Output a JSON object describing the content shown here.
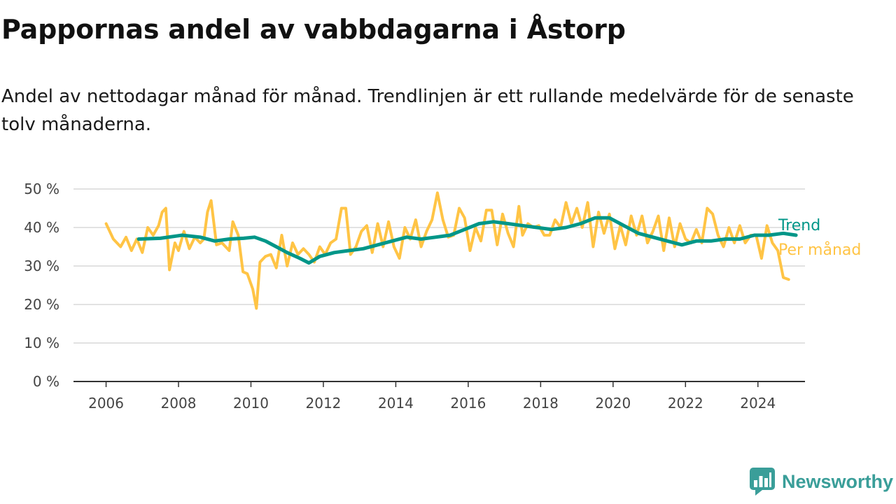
{
  "title": "Pappornas andel av vabbdagarna i Åstorp",
  "subtitle": "Andel av nettodagar månad för månad. Trendlinjen är ett rullande medelvärde för de senaste tolv månaderna.",
  "brand": {
    "name": "Newsworthy",
    "icon": "newsworthy-logo-icon"
  },
  "colors": {
    "trend": "#009688",
    "monthly": "#ffc445",
    "grid": "#d9d9d9",
    "axis": "#333333"
  },
  "chart_data": {
    "type": "line",
    "x_unit": "year (decimal)",
    "xlim": [
      2005.1,
      2025.3
    ],
    "ylim": [
      0,
      50
    ],
    "x_ticks": [
      2006,
      2008,
      2010,
      2012,
      2014,
      2016,
      2018,
      2020,
      2022,
      2024
    ],
    "x_tick_labels": [
      "2006",
      "2008",
      "2010",
      "2012",
      "2014",
      "2016",
      "2018",
      "2020",
      "2022",
      "2024"
    ],
    "y_ticks": [
      0,
      10,
      20,
      30,
      40,
      50
    ],
    "y_tick_labels": [
      "0 %",
      "10 %",
      "20 %",
      "30 %",
      "40 %",
      "50 %"
    ],
    "grid": true,
    "legend": "direct labels at right end of lines",
    "series": [
      {
        "name": "Per månad",
        "color": "#ffc445",
        "points": [
          [
            2006.0,
            41.0
          ],
          [
            2006.2,
            37.0
          ],
          [
            2006.4,
            35.0
          ],
          [
            2006.55,
            37.5
          ],
          [
            2006.7,
            34.0
          ],
          [
            2006.85,
            37.0
          ],
          [
            2007.0,
            33.5
          ],
          [
            2007.15,
            40.0
          ],
          [
            2007.3,
            38.0
          ],
          [
            2007.45,
            40.5
          ],
          [
            2007.55,
            44.0
          ],
          [
            2007.65,
            45.0
          ],
          [
            2007.75,
            29.0
          ],
          [
            2007.9,
            36.0
          ],
          [
            2008.0,
            34.0
          ],
          [
            2008.15,
            39.0
          ],
          [
            2008.3,
            34.5
          ],
          [
            2008.45,
            37.5
          ],
          [
            2008.6,
            36.0
          ],
          [
            2008.7,
            37.0
          ],
          [
            2008.8,
            44.0
          ],
          [
            2008.9,
            47.0
          ],
          [
            2009.05,
            35.5
          ],
          [
            2009.2,
            36.0
          ],
          [
            2009.4,
            34.0
          ],
          [
            2009.5,
            41.5
          ],
          [
            2009.65,
            38.0
          ],
          [
            2009.78,
            28.5
          ],
          [
            2009.9,
            28.0
          ],
          [
            2010.05,
            24.0
          ],
          [
            2010.15,
            19.0
          ],
          [
            2010.25,
            31.0
          ],
          [
            2010.4,
            32.5
          ],
          [
            2010.55,
            33.0
          ],
          [
            2010.7,
            29.5
          ],
          [
            2010.85,
            38.0
          ],
          [
            2011.0,
            30.0
          ],
          [
            2011.15,
            36.0
          ],
          [
            2011.3,
            33.0
          ],
          [
            2011.45,
            34.5
          ],
          [
            2011.6,
            33.0
          ],
          [
            2011.75,
            31.0
          ],
          [
            2011.9,
            35.0
          ],
          [
            2012.05,
            33.0
          ],
          [
            2012.2,
            36.0
          ],
          [
            2012.35,
            37.0
          ],
          [
            2012.5,
            45.0
          ],
          [
            2012.62,
            45.0
          ],
          [
            2012.75,
            33.0
          ],
          [
            2012.9,
            35.0
          ],
          [
            2013.05,
            39.0
          ],
          [
            2013.2,
            40.5
          ],
          [
            2013.35,
            33.5
          ],
          [
            2013.5,
            41.0
          ],
          [
            2013.65,
            35.0
          ],
          [
            2013.8,
            41.5
          ],
          [
            2013.95,
            35.0
          ],
          [
            2014.1,
            32.0
          ],
          [
            2014.25,
            40.0
          ],
          [
            2014.4,
            37.0
          ],
          [
            2014.55,
            42.0
          ],
          [
            2014.7,
            35.0
          ],
          [
            2014.85,
            39.0
          ],
          [
            2015.0,
            42.0
          ],
          [
            2015.15,
            49.0
          ],
          [
            2015.3,
            42.0
          ],
          [
            2015.45,
            37.5
          ],
          [
            2015.6,
            38.0
          ],
          [
            2015.75,
            45.0
          ],
          [
            2015.9,
            42.5
          ],
          [
            2016.05,
            34.0
          ],
          [
            2016.2,
            40.0
          ],
          [
            2016.35,
            36.5
          ],
          [
            2016.5,
            44.5
          ],
          [
            2016.65,
            44.5
          ],
          [
            2016.8,
            35.5
          ],
          [
            2016.95,
            43.5
          ],
          [
            2017.1,
            38.5
          ],
          [
            2017.25,
            35.0
          ],
          [
            2017.4,
            45.5
          ],
          [
            2017.5,
            38.0
          ],
          [
            2017.65,
            41.0
          ],
          [
            2017.8,
            40.0
          ],
          [
            2017.95,
            40.5
          ],
          [
            2018.1,
            38.0
          ],
          [
            2018.25,
            38.0
          ],
          [
            2018.4,
            42.0
          ],
          [
            2018.55,
            40.0
          ],
          [
            2018.7,
            46.5
          ],
          [
            2018.85,
            41.0
          ],
          [
            2019.0,
            45.0
          ],
          [
            2019.15,
            40.0
          ],
          [
            2019.3,
            46.5
          ],
          [
            2019.45,
            35.0
          ],
          [
            2019.6,
            44.0
          ],
          [
            2019.75,
            38.5
          ],
          [
            2019.9,
            43.5
          ],
          [
            2020.05,
            34.5
          ],
          [
            2020.2,
            40.5
          ],
          [
            2020.35,
            35.5
          ],
          [
            2020.5,
            43.0
          ],
          [
            2020.65,
            38.0
          ],
          [
            2020.8,
            43.0
          ],
          [
            2020.95,
            36.0
          ],
          [
            2021.1,
            39.0
          ],
          [
            2021.25,
            43.0
          ],
          [
            2021.4,
            34.0
          ],
          [
            2021.55,
            42.5
          ],
          [
            2021.7,
            35.0
          ],
          [
            2021.85,
            41.0
          ],
          [
            2022.0,
            37.0
          ],
          [
            2022.15,
            36.0
          ],
          [
            2022.3,
            39.5
          ],
          [
            2022.45,
            36.0
          ],
          [
            2022.6,
            45.0
          ],
          [
            2022.75,
            43.5
          ],
          [
            2022.9,
            38.0
          ],
          [
            2023.05,
            35.0
          ],
          [
            2023.2,
            40.0
          ],
          [
            2023.35,
            36.0
          ],
          [
            2023.5,
            40.5
          ],
          [
            2023.65,
            36.0
          ],
          [
            2023.8,
            38.0
          ],
          [
            2023.95,
            38.0
          ],
          [
            2024.1,
            32.0
          ],
          [
            2024.25,
            40.5
          ],
          [
            2024.4,
            36.0
          ],
          [
            2024.55,
            34.0
          ],
          [
            2024.7,
            27.0
          ],
          [
            2024.85,
            26.5
          ]
        ]
      },
      {
        "name": "Trend",
        "color": "#009688",
        "points": [
          [
            2006.9,
            37.0
          ],
          [
            2007.5,
            37.2
          ],
          [
            2008.1,
            38.0
          ],
          [
            2008.6,
            37.5
          ],
          [
            2009.0,
            36.5
          ],
          [
            2009.4,
            37.0
          ],
          [
            2009.8,
            37.2
          ],
          [
            2010.1,
            37.5
          ],
          [
            2010.4,
            36.5
          ],
          [
            2010.7,
            35.0
          ],
          [
            2011.0,
            33.5
          ],
          [
            2011.35,
            32.0
          ],
          [
            2011.6,
            30.8
          ],
          [
            2011.9,
            32.5
          ],
          [
            2012.3,
            33.5
          ],
          [
            2012.7,
            34.0
          ],
          [
            2013.1,
            34.5
          ],
          [
            2013.5,
            35.5
          ],
          [
            2013.9,
            36.5
          ],
          [
            2014.3,
            37.5
          ],
          [
            2014.7,
            37.0
          ],
          [
            2015.1,
            37.5
          ],
          [
            2015.5,
            38.0
          ],
          [
            2015.9,
            39.5
          ],
          [
            2016.3,
            41.0
          ],
          [
            2016.7,
            41.5
          ],
          [
            2017.1,
            41.0
          ],
          [
            2017.5,
            40.5
          ],
          [
            2017.9,
            40.0
          ],
          [
            2018.3,
            39.5
          ],
          [
            2018.7,
            40.0
          ],
          [
            2019.1,
            41.0
          ],
          [
            2019.5,
            42.5
          ],
          [
            2019.9,
            42.5
          ],
          [
            2020.3,
            40.5
          ],
          [
            2020.7,
            38.5
          ],
          [
            2021.1,
            37.5
          ],
          [
            2021.5,
            36.5
          ],
          [
            2021.9,
            35.5
          ],
          [
            2022.3,
            36.5
          ],
          [
            2022.7,
            36.5
          ],
          [
            2023.1,
            37.0
          ],
          [
            2023.5,
            37.0
          ],
          [
            2023.9,
            38.0
          ],
          [
            2024.3,
            38.0
          ],
          [
            2024.7,
            38.5
          ],
          [
            2025.05,
            38.0
          ]
        ]
      }
    ]
  }
}
